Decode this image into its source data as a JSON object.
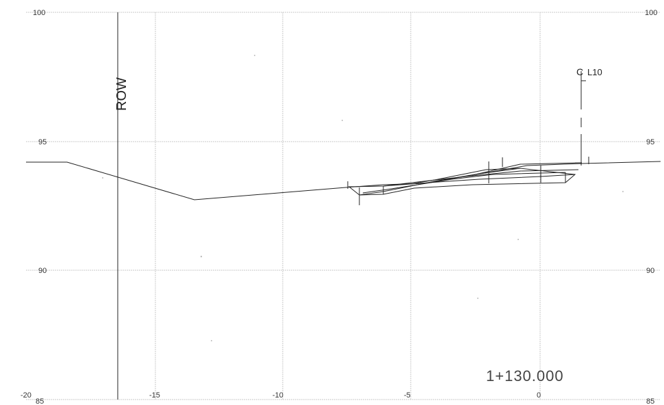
{
  "drawing": {
    "row_label": "ROW",
    "centerline_label": "L10",
    "centerline_symbol": "centerline-symbol",
    "station_label": "1+130.000",
    "y_ticks_left": [
      "100",
      "95",
      "90",
      "85"
    ],
    "y_ticks_right": [
      "100",
      "95",
      "90",
      "85"
    ],
    "x_ticks": [
      "-20",
      "-15",
      "-10",
      "-5",
      "0"
    ]
  },
  "colors": {
    "ink": "#222222",
    "grid": "#c8c8c8",
    "station_text": "#444444"
  }
}
